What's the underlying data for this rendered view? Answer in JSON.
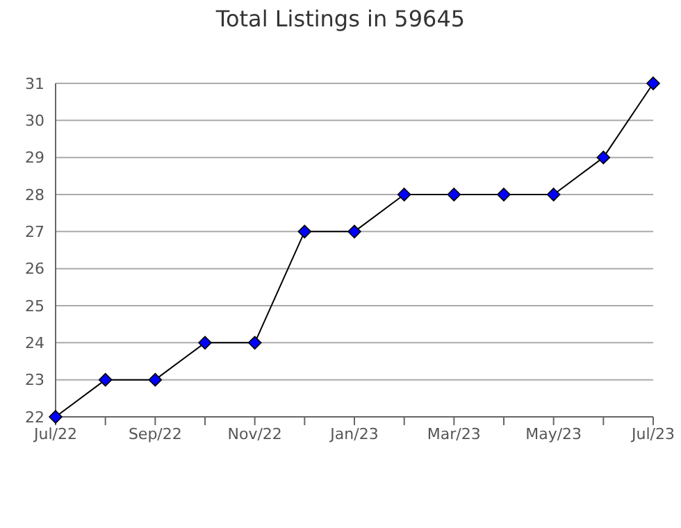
{
  "chart_data": {
    "type": "line",
    "title": "Total Listings in 59645",
    "categories": [
      "Jul/22",
      null,
      "Sep/22",
      null,
      "Nov/22",
      null,
      "Jan/23",
      null,
      "Mar/23",
      null,
      "May/23",
      null,
      "Jul/23"
    ],
    "series": [
      {
        "color": "#0000ff",
        "values": [
          22,
          23,
          23,
          24,
          24,
          27,
          27,
          28,
          28,
          28,
          28,
          29,
          31
        ]
      }
    ],
    "ylim": [
      22,
      31
    ],
    "yticks": [
      22,
      23,
      24,
      25,
      26,
      27,
      28,
      29,
      30,
      31
    ],
    "grid": "y",
    "marker": "diamond",
    "line_style": "solid"
  }
}
